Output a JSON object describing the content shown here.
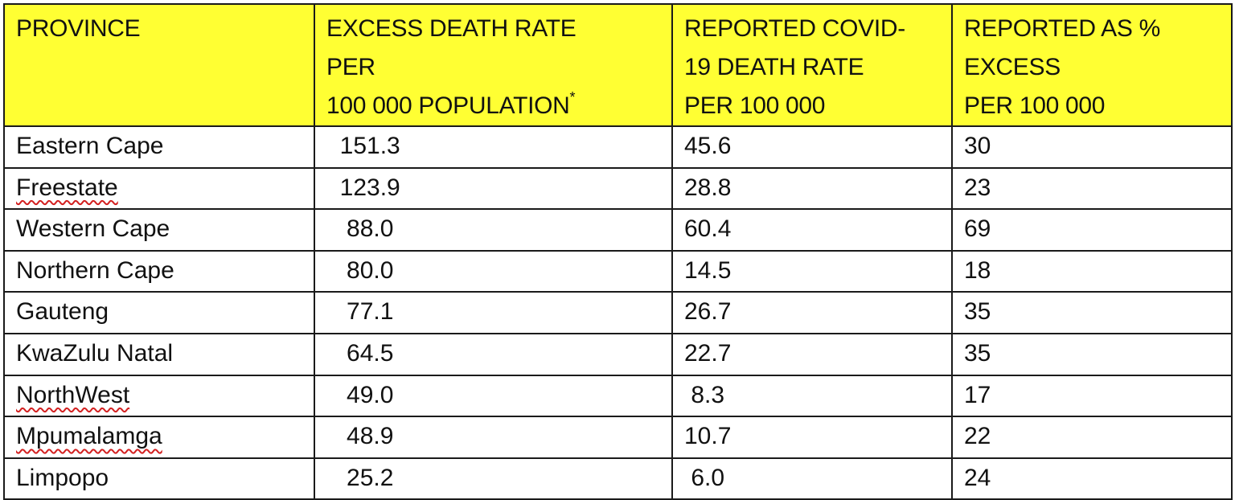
{
  "table": {
    "headers": [
      {
        "lines": [
          "PROVINCE"
        ]
      },
      {
        "lines": [
          "EXCESS DEATH RATE",
          "PER",
          "100 000 POPULATION"
        ],
        "footnote_mark": "*"
      },
      {
        "lines": [
          "REPORTED COVID-",
          "19 DEATH RATE",
          "PER 100 000"
        ]
      },
      {
        "lines": [
          "REPORTED AS %",
          "EXCESS",
          "PER 100 000"
        ]
      }
    ],
    "header_background": "#ffff33",
    "rows": [
      {
        "province": "Eastern Cape",
        "excess_rate": "151.3",
        "reported_rate": "45.6",
        "reported_pct": "30"
      },
      {
        "province": "Freestate",
        "excess_rate": "123.9",
        "reported_rate": "28.8",
        "reported_pct": "23",
        "spellcheck_underline": true
      },
      {
        "province": "Western Cape",
        "excess_rate": "88.0",
        "reported_rate": "60.4",
        "reported_pct": "69"
      },
      {
        "province": "Northern Cape",
        "excess_rate": "80.0",
        "reported_rate": "14.5",
        "reported_pct": "18"
      },
      {
        "province": "Gauteng",
        "excess_rate": "77.1",
        "reported_rate": "26.7",
        "reported_pct": "35"
      },
      {
        "province": "KwaZulu Natal",
        "excess_rate": "64.5",
        "reported_rate": "22.7",
        "reported_pct": "35"
      },
      {
        "province": "NorthWest",
        "excess_rate": "49.0",
        "reported_rate": "8.3",
        "reported_pct": "17",
        "spellcheck_underline": true
      },
      {
        "province": "Mpumalamga",
        "excess_rate": "48.9",
        "reported_rate": "10.7",
        "reported_pct": "22",
        "spellcheck_underline": true
      },
      {
        "province": "Limpopo",
        "excess_rate": "25.2",
        "reported_rate": "6.0",
        "reported_pct": "24"
      }
    ]
  }
}
